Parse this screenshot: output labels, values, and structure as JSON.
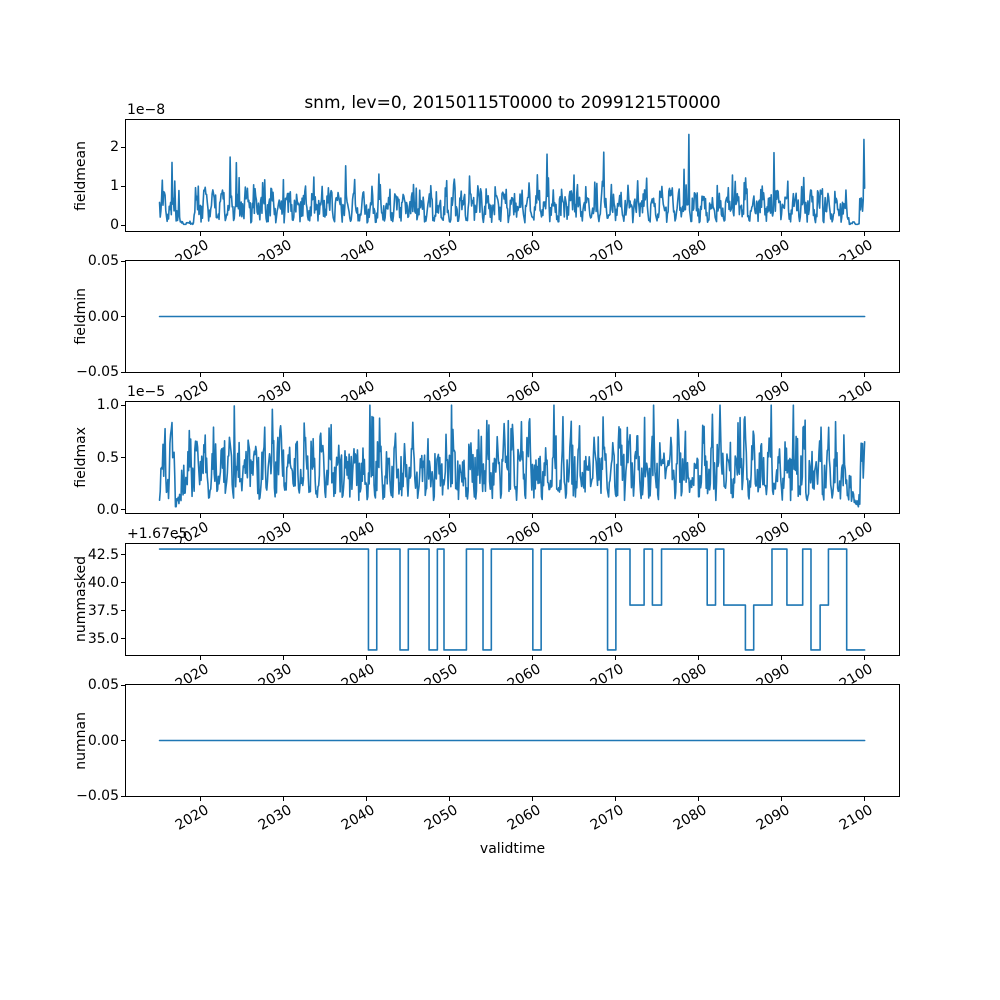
{
  "title": "snm, lev=0, 20150115T0000 to 20991215T0000",
  "xlabel": "validtime",
  "colors": {
    "line": "#1f77b4",
    "frame": "#000000",
    "background": "#ffffff",
    "text": "#000000"
  },
  "xlim": [
    2011.0,
    2104.1
  ],
  "xticks": [
    2020,
    2030,
    2040,
    2050,
    2060,
    2070,
    2080,
    2090,
    2100
  ],
  "time_range": {
    "start_label": "20150115T0000",
    "end_label": "20991215T0000",
    "x_start": 2015.04,
    "x_end": 2099.96
  },
  "chart_data": [
    {
      "name": "fieldmean",
      "type": "line",
      "ylabel": "fieldmean",
      "offset_text": "1e−8",
      "unit_scale": 1e-08,
      "yticks": [
        {
          "v": 2,
          "label": "2"
        },
        {
          "v": 1,
          "label": "1"
        },
        {
          "v": 0,
          "label": "0"
        }
      ],
      "ylim": [
        -0.15,
        2.7
      ],
      "series": {
        "kind": "noisy",
        "seed": 20150115,
        "n": 1020,
        "base": 0.06,
        "seasonAmp": 0.62,
        "noiseAmp": 0.55,
        "spikeProb": 0.022,
        "spike0": 0.45,
        "spikeAmp": 1.05,
        "min": 0.02,
        "max": 2.55,
        "dips": [
          [
            2017.4,
            2019.2,
            0.12
          ],
          [
            2098.1,
            2099.3,
            0.1
          ]
        ],
        "tail": [
          2.2,
          0.95
        ],
        "summary": "noisy quasi-annual oscillation 0.1–1.4 ×1e-8, spikes to 2.55e-8, near-zero dips around 2017–2019 and 2098–2099, final spike 2.2e-8"
      }
    },
    {
      "name": "fieldmin",
      "type": "line",
      "ylabel": "fieldmin",
      "offset_text": null,
      "yticks": [
        {
          "v": 0.05,
          "label": "0.05"
        },
        {
          "v": 0.0,
          "label": "0.00"
        },
        {
          "v": -0.05,
          "label": "−0.05"
        }
      ],
      "ylim": [
        -0.05,
        0.05
      ],
      "series": {
        "kind": "constant",
        "value": 0.0,
        "summary": "constant 0.0 from 2015 to 2100"
      }
    },
    {
      "name": "fieldmax",
      "type": "line",
      "ylabel": "fieldmax",
      "offset_text": "1e−5",
      "unit_scale": 1e-05,
      "yticks": [
        {
          "v": 1.0,
          "label": "1.0"
        },
        {
          "v": 0.5,
          "label": "0.5"
        },
        {
          "v": 0.0,
          "label": "0.0"
        }
      ],
      "ylim": [
        -0.03,
        1.03
      ],
      "series": {
        "kind": "noisy",
        "seed": 7,
        "n": 1020,
        "base": 0.09,
        "seasonAmp": 0.4,
        "noiseAmp": 0.42,
        "spikeProb": 0.02,
        "spike0": 0.2,
        "spikeAmp": 0.5,
        "min": 0.03,
        "max": 1.0,
        "dips": [
          [
            2016.9,
            2017.7,
            0.2
          ],
          [
            2098.3,
            2099.4,
            0.22
          ]
        ],
        "tail": [
          0.65
        ],
        "summary": "noisy oscillation 0.1–0.75 ×1e-5, spikes to 1.0e-5, dips near 2017 and 2098–2099, final rise to 0.65e-5"
      }
    },
    {
      "name": "nummasked",
      "type": "line",
      "ylabel": "nummasked",
      "offset_text": "+1.67e5",
      "base_offset": 167000,
      "yticks": [
        {
          "v": 42.5,
          "label": "42.5"
        },
        {
          "v": 40.0,
          "label": "40.0"
        },
        {
          "v": 37.5,
          "label": "37.5"
        },
        {
          "v": 35.0,
          "label": "35.0"
        }
      ],
      "ylim": [
        33.55,
        43.45
      ],
      "series": {
        "kind": "step",
        "segments": [
          [
            2015.04,
            2040.2,
            43
          ],
          [
            2040.2,
            2041.2,
            34
          ],
          [
            2041.2,
            2044.0,
            43
          ],
          [
            2044.0,
            2045.0,
            34
          ],
          [
            2045.0,
            2047.5,
            43
          ],
          [
            2047.5,
            2048.5,
            34
          ],
          [
            2048.5,
            2049.3,
            43
          ],
          [
            2049.3,
            2052.0,
            34
          ],
          [
            2052.0,
            2054.0,
            43
          ],
          [
            2054.0,
            2055.0,
            34
          ],
          [
            2055.0,
            2060.0,
            43
          ],
          [
            2060.0,
            2061.0,
            34
          ],
          [
            2061.0,
            2069.0,
            43
          ],
          [
            2069.0,
            2070.0,
            34
          ],
          [
            2070.0,
            2071.7,
            43
          ],
          [
            2071.7,
            2073.4,
            38
          ],
          [
            2073.4,
            2074.4,
            43
          ],
          [
            2074.4,
            2075.5,
            38
          ],
          [
            2075.5,
            2081.0,
            43
          ],
          [
            2081.0,
            2082.0,
            38
          ],
          [
            2082.0,
            2083.0,
            43
          ],
          [
            2083.0,
            2085.6,
            38
          ],
          [
            2085.6,
            2086.6,
            34
          ],
          [
            2086.6,
            2088.8,
            38
          ],
          [
            2088.8,
            2090.6,
            43
          ],
          [
            2090.6,
            2092.5,
            38
          ],
          [
            2092.5,
            2093.5,
            43
          ],
          [
            2093.5,
            2094.6,
            34
          ],
          [
            2094.6,
            2095.6,
            38
          ],
          [
            2095.6,
            2097.8,
            43
          ],
          [
            2097.8,
            2099.96,
            34
          ]
        ],
        "summary": "step series: mostly 167043, dips to 167034, intermediate plateaus at 167038 after 2071, ends at 167034"
      }
    },
    {
      "name": "numnan",
      "type": "line",
      "ylabel": "numnan",
      "offset_text": null,
      "yticks": [
        {
          "v": 0.05,
          "label": "0.05"
        },
        {
          "v": 0.0,
          "label": "0.00"
        },
        {
          "v": -0.05,
          "label": "−0.05"
        }
      ],
      "ylim": [
        -0.05,
        0.05
      ],
      "series": {
        "kind": "constant",
        "value": 0.0,
        "summary": "constant 0.0 from 2015 to 2100"
      }
    }
  ]
}
